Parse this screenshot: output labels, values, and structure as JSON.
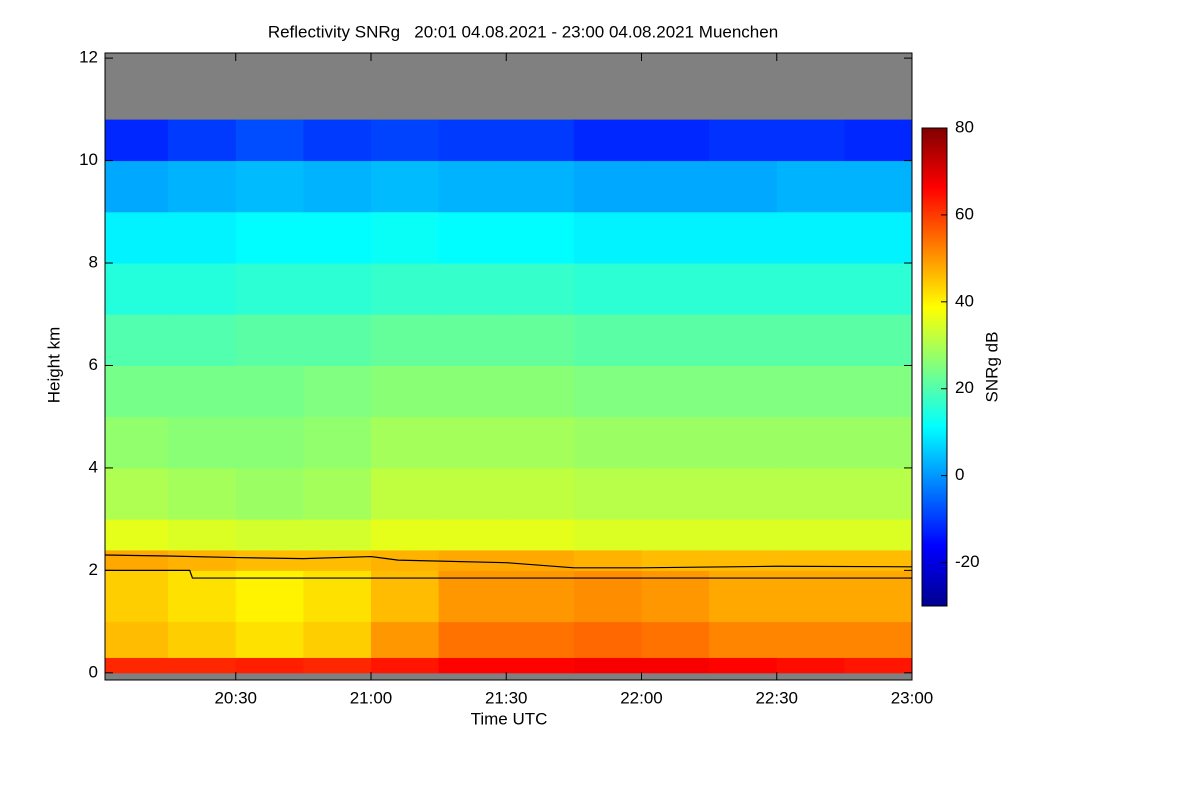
{
  "chart_data": {
    "type": "heatmap",
    "title": "Reflectivity SNRg   20:01 04.08.2021 - 23:00 04.08.2021 Muenchen",
    "x_label": "Time UTC",
    "y_label": "Height km",
    "colorbar_label": "SNRg dB",
    "xlim": [
      20.0167,
      23.0
    ],
    "xticks": [
      {
        "value": 20.5,
        "label": "20:30"
      },
      {
        "value": 21.0,
        "label": "21:00"
      },
      {
        "value": 21.5,
        "label": "21:30"
      },
      {
        "value": 22.0,
        "label": "22:00"
      },
      {
        "value": 22.5,
        "label": "22:30"
      },
      {
        "value": 23.0,
        "label": "23:00"
      }
    ],
    "ylim": [
      -0.14,
      12.1
    ],
    "yticks": [
      0,
      2,
      4,
      6,
      8,
      10,
      12
    ],
    "zlim": [
      -30,
      80
    ],
    "zticks": [
      -20,
      0,
      20,
      40,
      60,
      80
    ],
    "colormap": [
      "#00008f",
      "#0000ff",
      "#00ffff",
      "#ffff00",
      "#ff0000",
      "#800000"
    ],
    "missing_color": "#808080",
    "x_edges": [
      20.0167,
      20.25,
      20.5,
      20.75,
      21.0,
      21.25,
      21.5,
      21.75,
      22.0,
      22.25,
      22.5,
      22.75,
      23.0
    ],
    "y_edges": [
      0,
      0.3,
      1,
      2,
      2.4,
      3,
      4,
      5,
      6,
      7,
      8,
      9,
      10,
      10.8,
      12
    ],
    "z": [
      [
        62,
        62,
        63,
        62,
        64,
        66,
        66,
        67,
        67,
        66,
        65,
        64
      ],
      [
        46,
        44,
        42,
        44,
        50,
        54,
        54,
        55,
        54,
        52,
        52,
        52
      ],
      [
        44,
        42,
        40,
        42,
        46,
        50,
        50,
        51,
        50,
        48,
        48,
        48
      ],
      [
        48,
        47,
        46,
        46,
        47,
        48,
        48,
        47,
        46,
        46,
        46,
        46
      ],
      [
        36,
        35,
        34,
        34,
        36,
        36,
        36,
        35,
        35,
        35,
        35,
        35
      ],
      [
        30,
        29,
        28,
        29,
        32,
        32,
        32,
        31,
        31,
        31,
        31,
        31
      ],
      [
        27,
        26,
        26,
        27,
        29,
        29,
        29,
        28,
        28,
        28,
        28,
        28
      ],
      [
        24,
        24,
        24,
        25,
        26,
        26,
        26,
        25,
        25,
        25,
        25,
        25
      ],
      [
        20,
        20,
        21,
        21,
        22,
        22,
        22,
        21,
        21,
        21,
        21,
        21
      ],
      [
        15,
        15,
        16,
        16,
        17,
        17,
        17,
        16,
        16,
        16,
        16,
        16
      ],
      [
        10,
        10,
        11,
        11,
        12,
        11,
        11,
        10,
        10,
        10,
        10,
        10
      ],
      [
        2,
        3,
        4,
        3,
        4,
        3,
        3,
        2,
        2,
        2,
        3,
        3
      ],
      [
        -12,
        -10,
        -8,
        -10,
        -9,
        -10,
        -10,
        -12,
        -12,
        -11,
        -11,
        -12
      ],
      [
        null,
        null,
        null,
        null,
        null,
        null,
        null,
        null,
        null,
        null,
        null,
        null
      ]
    ],
    "series": [
      {
        "color": "#000000",
        "x": [
          20.0167,
          20.25,
          20.5,
          20.75,
          21.0,
          21.1,
          21.5,
          21.75,
          22.0,
          22.5,
          23.0
        ],
        "values": [
          2.3,
          2.28,
          2.25,
          2.23,
          2.27,
          2.2,
          2.15,
          2.05,
          2.05,
          2.08,
          2.07
        ]
      },
      {
        "color": "#000000",
        "x": [
          20.0167,
          20.33,
          20.34,
          23.0
        ],
        "values": [
          2.0,
          2.0,
          1.85,
          1.85
        ]
      }
    ]
  }
}
